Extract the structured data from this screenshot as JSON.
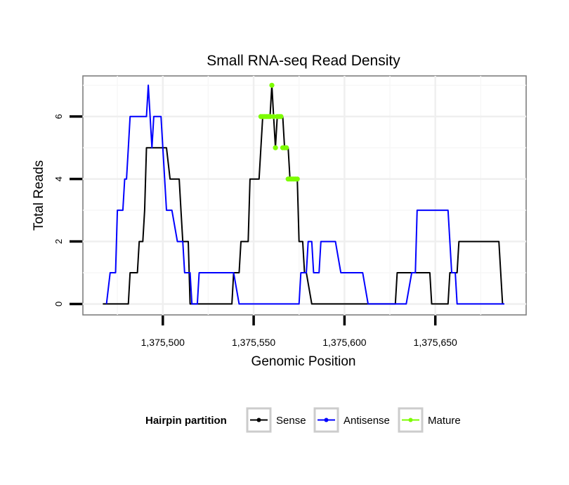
{
  "chart_data": {
    "type": "line",
    "title": "Small RNA-seq Read Density",
    "xlabel": "Genomic Position",
    "ylabel": "Total Reads",
    "xlim": [
      1375456,
      1375700
    ],
    "ylim": [
      -0.35,
      7.3
    ],
    "x_ticks": [
      1375500,
      1375550,
      1375600,
      1375650
    ],
    "x_tick_labels": [
      "1,375,500",
      "1,375,550",
      "1,375,600",
      "1,375,650"
    ],
    "y_ticks": [
      0,
      2,
      4,
      6
    ],
    "y_tick_labels": [
      "0",
      "2",
      "4",
      "6"
    ],
    "grid": true,
    "legend": {
      "title": "Hairpin partition",
      "placement": "bottom",
      "entries": [
        "Sense",
        "Antisense",
        "Mature"
      ]
    },
    "series": [
      {
        "name": "Sense",
        "color": "#000000",
        "style": "line",
        "points": [
          [
            1375467,
            0
          ],
          [
            1375481,
            0
          ],
          [
            1375482,
            1
          ],
          [
            1375486,
            1
          ],
          [
            1375487,
            2
          ],
          [
            1375489,
            2
          ],
          [
            1375490,
            3
          ],
          [
            1375491,
            5
          ],
          [
            1375497,
            5
          ],
          [
            1375498,
            5
          ],
          [
            1375500,
            5
          ],
          [
            1375502,
            5
          ],
          [
            1375504,
            4
          ],
          [
            1375509,
            4
          ],
          [
            1375510,
            3
          ],
          [
            1375511,
            2
          ],
          [
            1375514,
            2
          ],
          [
            1375515,
            0
          ],
          [
            1375538,
            0
          ],
          [
            1375539,
            1
          ],
          [
            1375542,
            1
          ],
          [
            1375543,
            2
          ],
          [
            1375547,
            2
          ],
          [
            1375548,
            4
          ],
          [
            1375553,
            4
          ],
          [
            1375555,
            6
          ],
          [
            1375559,
            6
          ],
          [
            1375560,
            7
          ],
          [
            1375561,
            6
          ],
          [
            1375562,
            5
          ],
          [
            1375563,
            6
          ],
          [
            1375566,
            6
          ],
          [
            1375567,
            5
          ],
          [
            1375569,
            5
          ],
          [
            1375570,
            4
          ],
          [
            1375574,
            4
          ],
          [
            1375575,
            2
          ],
          [
            1375577,
            2
          ],
          [
            1375578,
            1
          ],
          [
            1375579,
            1
          ],
          [
            1375582,
            0
          ],
          [
            1375628,
            0
          ],
          [
            1375629,
            1
          ],
          [
            1375647,
            1
          ],
          [
            1375648,
            0
          ],
          [
            1375657,
            0
          ],
          [
            1375658,
            1
          ],
          [
            1375662,
            1
          ],
          [
            1375663,
            2
          ],
          [
            1375685,
            2
          ],
          [
            1375687,
            0
          ]
        ]
      },
      {
        "name": "Antisense",
        "color": "#0000ff",
        "style": "line",
        "points": [
          [
            1375469,
            0
          ],
          [
            1375471,
            1
          ],
          [
            1375474,
            1
          ],
          [
            1375475,
            3
          ],
          [
            1375478,
            3
          ],
          [
            1375479,
            4
          ],
          [
            1375480,
            4
          ],
          [
            1375481,
            5
          ],
          [
            1375482,
            6
          ],
          [
            1375491,
            6
          ],
          [
            1375492,
            7
          ],
          [
            1375494,
            5
          ],
          [
            1375495,
            6
          ],
          [
            1375499,
            6
          ],
          [
            1375500,
            5
          ],
          [
            1375501,
            4
          ],
          [
            1375502,
            3
          ],
          [
            1375505,
            3
          ],
          [
            1375508,
            2
          ],
          [
            1375511,
            2
          ],
          [
            1375512,
            1
          ],
          [
            1375515,
            1
          ],
          [
            1375516,
            0
          ],
          [
            1375519,
            0
          ],
          [
            1375520,
            1
          ],
          [
            1375539,
            1
          ],
          [
            1375542,
            0
          ],
          [
            1375564,
            0
          ],
          [
            1375568,
            0
          ],
          [
            1375575,
            0
          ],
          [
            1375576,
            1
          ],
          [
            1375579,
            1
          ],
          [
            1375580,
            2
          ],
          [
            1375582,
            2
          ],
          [
            1375583,
            1
          ],
          [
            1375586,
            1
          ],
          [
            1375587,
            2
          ],
          [
            1375595,
            2
          ],
          [
            1375598,
            1
          ],
          [
            1375610,
            1
          ],
          [
            1375613,
            0
          ],
          [
            1375634,
            0
          ],
          [
            1375637,
            1
          ],
          [
            1375639,
            1
          ],
          [
            1375640,
            3
          ],
          [
            1375657,
            3
          ],
          [
            1375659,
            1
          ],
          [
            1375661,
            1
          ],
          [
            1375662,
            0
          ],
          [
            1375688,
            0
          ]
        ]
      },
      {
        "name": "Mature",
        "color": "#7cfc00",
        "style": "points",
        "points": [
          [
            1375554,
            6
          ],
          [
            1375555,
            6
          ],
          [
            1375556,
            6
          ],
          [
            1375557,
            6
          ],
          [
            1375558,
            6
          ],
          [
            1375559,
            6
          ],
          [
            1375560,
            7
          ],
          [
            1375561,
            6
          ],
          [
            1375562,
            5
          ],
          [
            1375563,
            6
          ],
          [
            1375564,
            6
          ],
          [
            1375565,
            6
          ],
          [
            1375566,
            5
          ],
          [
            1375567,
            5
          ],
          [
            1375568,
            5
          ],
          [
            1375569,
            4
          ],
          [
            1375570,
            4
          ],
          [
            1375571,
            4
          ],
          [
            1375572,
            4
          ],
          [
            1375573,
            4
          ],
          [
            1375574,
            4
          ]
        ]
      }
    ]
  }
}
